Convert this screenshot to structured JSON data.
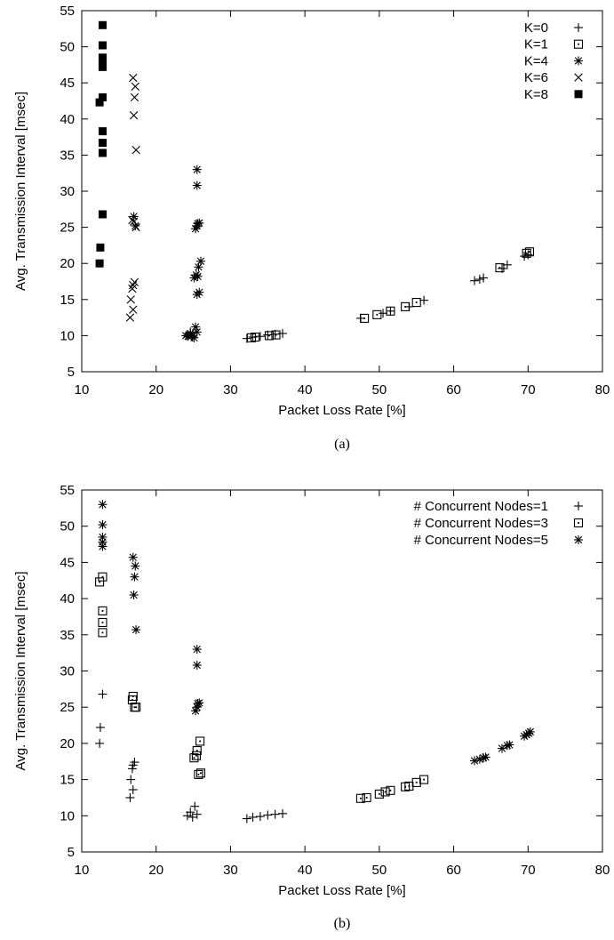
{
  "chart_data": [
    {
      "type": "scatter",
      "caption": "(a)",
      "xlabel": "Packet Loss Rate [%]",
      "ylabel": "Avg. Transmission Interval [msec]",
      "xlim": [
        10,
        80
      ],
      "ylim": [
        5,
        55
      ],
      "xticks": [
        "10",
        "20",
        "30",
        "40",
        "50",
        "60",
        "70",
        "80"
      ],
      "yticks": [
        "5",
        "10",
        "15",
        "20",
        "25",
        "30",
        "35",
        "40",
        "45",
        "50",
        "55"
      ],
      "legend_position": "top-right",
      "series": [
        {
          "name": "K=0",
          "marker": "plus",
          "points": [
            [
              24.2,
              10.0
            ],
            [
              24.6,
              10.5
            ],
            [
              24.9,
              9.8
            ],
            [
              32.2,
              9.6
            ],
            [
              33.0,
              9.8
            ],
            [
              34.0,
              9.9
            ],
            [
              35.0,
              10.1
            ],
            [
              36.0,
              10.2
            ],
            [
              37.0,
              10.3
            ],
            [
              47.5,
              12.4
            ],
            [
              50.5,
              13.1
            ],
            [
              51.5,
              13.4
            ],
            [
              54.0,
              14.0
            ],
            [
              56.0,
              14.9
            ],
            [
              62.8,
              17.6
            ],
            [
              63.5,
              17.8
            ],
            [
              64.0,
              18.0
            ],
            [
              66.5,
              19.3
            ],
            [
              67.2,
              19.8
            ],
            [
              69.5,
              21.0
            ],
            [
              70.0,
              21.2
            ]
          ]
        },
        {
          "name": "K=1",
          "marker": "square-dot",
          "points": [
            [
              32.8,
              9.7
            ],
            [
              33.3,
              9.8
            ],
            [
              35.2,
              10.0
            ],
            [
              36.1,
              10.1
            ],
            [
              48.0,
              12.4
            ],
            [
              49.7,
              12.9
            ],
            [
              51.5,
              13.4
            ],
            [
              53.5,
              14.0
            ],
            [
              55.0,
              14.6
            ],
            [
              66.2,
              19.4
            ],
            [
              69.8,
              21.4
            ],
            [
              70.2,
              21.6
            ]
          ]
        },
        {
          "name": "K=4",
          "marker": "asterisk",
          "points": [
            [
              17.0,
              26.5
            ],
            [
              17.2,
              25.2
            ],
            [
              24.0,
              10.0
            ],
            [
              24.3,
              9.9
            ],
            [
              24.6,
              10.3
            ],
            [
              24.8,
              10.0
            ],
            [
              25.1,
              9.7
            ],
            [
              25.3,
              11.2
            ],
            [
              25.5,
              10.5
            ],
            [
              25.1,
              18.0
            ],
            [
              25.4,
              18.4
            ],
            [
              25.6,
              18.2
            ],
            [
              25.5,
              15.7
            ],
            [
              25.8,
              16.0
            ],
            [
              25.7,
              19.5
            ],
            [
              26.0,
              20.3
            ],
            [
              25.3,
              24.8
            ],
            [
              25.5,
              25.2
            ],
            [
              25.6,
              25.5
            ],
            [
              25.8,
              25.6
            ],
            [
              25.5,
              30.8
            ],
            [
              25.5,
              33.0
            ]
          ]
        },
        {
          "name": "K=6",
          "marker": "cross",
          "points": [
            [
              16.5,
              12.5
            ],
            [
              16.9,
              13.6
            ],
            [
              16.6,
              15.0
            ],
            [
              16.8,
              16.5
            ],
            [
              16.9,
              17.0
            ],
            [
              17.1,
              17.4
            ],
            [
              16.8,
              26.0
            ],
            [
              17.0,
              25.8
            ],
            [
              17.3,
              25.0
            ],
            [
              17.3,
              35.7
            ],
            [
              17.0,
              40.5
            ],
            [
              17.1,
              43.0
            ],
            [
              17.2,
              44.5
            ],
            [
              16.9,
              45.7
            ]
          ]
        },
        {
          "name": "K=8",
          "marker": "filled-square",
          "points": [
            [
              12.4,
              20.0
            ],
            [
              12.5,
              22.2
            ],
            [
              12.8,
              26.8
            ],
            [
              12.4,
              42.3
            ],
            [
              12.8,
              43.0
            ],
            [
              12.8,
              35.3
            ],
            [
              12.8,
              36.7
            ],
            [
              12.8,
              38.3
            ],
            [
              12.8,
              47.2
            ],
            [
              12.8,
              47.8
            ],
            [
              12.8,
              48.5
            ],
            [
              12.8,
              50.2
            ],
            [
              12.8,
              53.0
            ]
          ]
        }
      ]
    },
    {
      "type": "scatter",
      "caption": "(b)",
      "xlabel": "Packet Loss Rate [%]",
      "ylabel": "Avg. Transmission Interval [msec]",
      "xlim": [
        10,
        80
      ],
      "ylim": [
        5,
        55
      ],
      "xticks": [
        "10",
        "20",
        "30",
        "40",
        "50",
        "60",
        "70",
        "80"
      ],
      "yticks": [
        "5",
        "10",
        "15",
        "20",
        "25",
        "30",
        "35",
        "40",
        "45",
        "50",
        "55"
      ],
      "legend_position": "top-right",
      "series": [
        {
          "name": "# Concurrent Nodes=1",
          "marker": "plus",
          "points": [
            [
              12.4,
              20.0
            ],
            [
              12.5,
              22.2
            ],
            [
              12.8,
              26.8
            ],
            [
              16.5,
              12.5
            ],
            [
              16.9,
              13.6
            ],
            [
              16.6,
              15.0
            ],
            [
              16.8,
              16.5
            ],
            [
              16.9,
              17.0
            ],
            [
              17.1,
              17.4
            ],
            [
              24.2,
              10.0
            ],
            [
              24.6,
              10.5
            ],
            [
              24.9,
              9.8
            ],
            [
              25.2,
              11.3
            ],
            [
              25.5,
              10.2
            ],
            [
              32.2,
              9.6
            ],
            [
              33.0,
              9.8
            ],
            [
              34.0,
              9.9
            ],
            [
              35.0,
              10.1
            ],
            [
              36.0,
              10.2
            ],
            [
              37.0,
              10.3
            ]
          ]
        },
        {
          "name": "# Concurrent Nodes=3",
          "marker": "square-dot",
          "points": [
            [
              12.4,
              42.3
            ],
            [
              12.8,
              43.0
            ],
            [
              12.8,
              35.3
            ],
            [
              12.8,
              36.7
            ],
            [
              12.8,
              38.3
            ],
            [
              16.8,
              26.0
            ],
            [
              16.9,
              26.5
            ],
            [
              17.1,
              25.0
            ],
            [
              17.3,
              25.0
            ],
            [
              25.1,
              18.0
            ],
            [
              25.4,
              18.3
            ],
            [
              25.5,
              19.0
            ],
            [
              25.7,
              15.7
            ],
            [
              26.0,
              15.9
            ],
            [
              25.9,
              20.3
            ],
            [
              47.5,
              12.4
            ],
            [
              48.3,
              12.5
            ],
            [
              50.0,
              13.0
            ],
            [
              50.8,
              13.3
            ],
            [
              51.5,
              13.5
            ],
            [
              53.5,
              14.0
            ],
            [
              54.0,
              14.1
            ],
            [
              55.0,
              14.6
            ],
            [
              56.0,
              15.0
            ]
          ]
        },
        {
          "name": "# Concurrent Nodes=5",
          "marker": "asterisk",
          "points": [
            [
              12.8,
              47.2
            ],
            [
              12.8,
              47.8
            ],
            [
              12.8,
              48.5
            ],
            [
              12.8,
              50.2
            ],
            [
              12.8,
              53.0
            ],
            [
              16.9,
              45.7
            ],
            [
              17.2,
              44.5
            ],
            [
              17.1,
              43.0
            ],
            [
              17.0,
              40.5
            ],
            [
              17.3,
              35.7
            ],
            [
              25.5,
              33.0
            ],
            [
              25.5,
              30.8
            ],
            [
              25.3,
              24.5
            ],
            [
              25.5,
              25.0
            ],
            [
              25.6,
              25.5
            ],
            [
              25.8,
              25.6
            ],
            [
              62.8,
              17.6
            ],
            [
              63.5,
              17.8
            ],
            [
              64.0,
              18.0
            ],
            [
              64.3,
              18.1
            ],
            [
              66.5,
              19.3
            ],
            [
              67.2,
              19.7
            ],
            [
              67.5,
              19.8
            ],
            [
              69.5,
              21.0
            ],
            [
              69.8,
              21.2
            ],
            [
              70.1,
              21.4
            ],
            [
              70.3,
              21.6
            ]
          ]
        }
      ]
    }
  ]
}
